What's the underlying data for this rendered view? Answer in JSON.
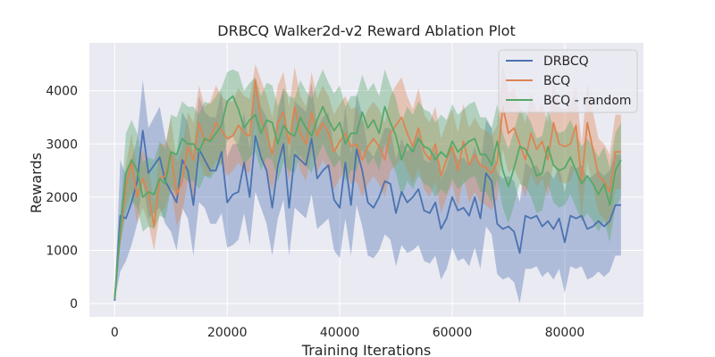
{
  "chart_data": {
    "type": "line",
    "title": "DRBCQ Walker2d-v2 Reward Ablation Plot",
    "xlabel": "Training Iterations",
    "ylabel": "Rewards",
    "xlim": [
      -4500,
      94000
    ],
    "ylim": [
      -250,
      4900
    ],
    "x_ticks": [
      0,
      20000,
      40000,
      60000,
      80000
    ],
    "x_tick_labels": [
      "0",
      "20000",
      "40000",
      "60000",
      "80000"
    ],
    "y_ticks": [
      0,
      1000,
      2000,
      3000,
      4000
    ],
    "y_tick_labels": [
      "0",
      "1000",
      "2000",
      "3000",
      "4000"
    ],
    "grid": true,
    "legend_position": "top-right",
    "x_start": 0,
    "x_step": 1000,
    "series": [
      {
        "name": "DRBCQ",
        "color": "#4c72b0",
        "values": [
          50,
          1650,
          1600,
          1900,
          2300,
          3250,
          2450,
          2600,
          2750,
          2300,
          2100,
          1900,
          2700,
          2500,
          1850,
          2900,
          2700,
          2500,
          2500,
          2850,
          1900,
          2050,
          2100,
          2650,
          2000,
          3150,
          2750,
          2500,
          1800,
          2600,
          3000,
          1800,
          2800,
          2700,
          2600,
          3100,
          2350,
          2500,
          2600,
          1950,
          1800,
          2650,
          1850,
          2900,
          2500,
          1900,
          1800,
          2000,
          2300,
          2250,
          1700,
          2100,
          1900,
          2000,
          2150,
          1750,
          1700,
          1900,
          1400,
          1600,
          2000,
          1750,
          1800,
          1650,
          2000,
          1600,
          2450,
          2300,
          1500,
          1400,
          1450,
          1350,
          950,
          1650,
          1600,
          1650,
          1450,
          1550,
          1400,
          1600,
          1150,
          1650,
          1600,
          1650,
          1400,
          1450,
          1550,
          1450,
          1550,
          1850,
          1850
        ],
        "lower": [
          50,
          600,
          800,
          1100,
          1500,
          2300,
          1600,
          1700,
          1800,
          1500,
          1350,
          1000,
          1800,
          1600,
          900,
          1900,
          1800,
          1500,
          1500,
          1700,
          1050,
          1100,
          1200,
          1700,
          1100,
          2100,
          1800,
          1500,
          900,
          1600,
          1950,
          900,
          1800,
          1700,
          1600,
          2050,
          1400,
          1500,
          1600,
          1000,
          850,
          1600,
          900,
          1850,
          1450,
          900,
          850,
          1000,
          1300,
          1200,
          700,
          1100,
          950,
          1000,
          1100,
          800,
          750,
          900,
          450,
          650,
          1050,
          800,
          850,
          700,
          1050,
          650,
          1450,
          1300,
          550,
          450,
          500,
          400,
          0,
          650,
          650,
          700,
          500,
          600,
          450,
          650,
          200,
          700,
          650,
          700,
          450,
          500,
          600,
          500,
          600,
          900,
          900
        ],
        "upper": [
          50,
          2700,
          2400,
          2700,
          3100,
          4200,
          3300,
          3500,
          3700,
          3100,
          2850,
          2800,
          3600,
          3400,
          2800,
          3900,
          3600,
          3500,
          3500,
          4000,
          2750,
          3000,
          3000,
          3600,
          2900,
          4200,
          3700,
          3500,
          2700,
          3600,
          4050,
          2700,
          3800,
          3700,
          3600,
          4150,
          3300,
          3500,
          3600,
          2900,
          2750,
          3700,
          2800,
          3950,
          3550,
          2900,
          2750,
          3000,
          3300,
          3300,
          2700,
          3100,
          2850,
          3000,
          3200,
          2700,
          2650,
          2900,
          2350,
          2550,
          2950,
          2700,
          2750,
          2600,
          2950,
          2550,
          3450,
          3300,
          2450,
          2350,
          2400,
          2300,
          1900,
          2650,
          2550,
          2600,
          2400,
          2500,
          2350,
          2550,
          2100,
          2600,
          2550,
          2600,
          2350,
          2400,
          2500,
          2400,
          2500,
          2800,
          2800
        ]
      },
      {
        "name": "BCQ",
        "color": "#dd8452",
        "values": [
          100,
          1300,
          2200,
          2650,
          2000,
          2350,
          2050,
          1450,
          2350,
          2400,
          2850,
          2050,
          2300,
          2950,
          2700,
          3400,
          3050,
          3100,
          3400,
          3250,
          3100,
          3150,
          3350,
          3200,
          3150,
          4200,
          3450,
          3200,
          2800,
          3400,
          3600,
          3000,
          3700,
          3200,
          3000,
          3600,
          3150,
          3400,
          3200,
          2850,
          3050,
          3200,
          2950,
          3000,
          2700,
          2950,
          3100,
          2950,
          2700,
          3200,
          3350,
          3500,
          3200,
          2950,
          3300,
          2850,
          2700,
          3000,
          2400,
          2700,
          2950,
          2500,
          3050,
          2600,
          2800,
          2600,
          2550,
          2450,
          2650,
          3700,
          3200,
          3300,
          3000,
          2700,
          3200,
          2900,
          3050,
          2700,
          3400,
          3000,
          2950,
          3000,
          3350,
          2300,
          3400,
          2900,
          2400,
          2300,
          2100,
          2850,
          2850
        ],
        "lower": [
          100,
          1100,
          1800,
          2100,
          1500,
          1800,
          1500,
          1000,
          1700,
          1800,
          2200,
          1450,
          1700,
          2300,
          2000,
          2700,
          2400,
          2400,
          2700,
          2600,
          2400,
          2500,
          2650,
          2500,
          2450,
          3400,
          2700,
          2500,
          2100,
          2700,
          2850,
          2300,
          2950,
          2500,
          2300,
          2850,
          2450,
          2700,
          2500,
          2150,
          2350,
          2500,
          2250,
          2300,
          2000,
          2250,
          2400,
          2250,
          2000,
          2500,
          2600,
          2750,
          2500,
          2250,
          2550,
          2150,
          2000,
          2300,
          1700,
          2000,
          2250,
          1800,
          2350,
          1900,
          2100,
          1900,
          1850,
          1750,
          1950,
          2900,
          2450,
          2550,
          2300,
          2000,
          2450,
          2200,
          2350,
          2000,
          2650,
          2300,
          2250,
          2300,
          2600,
          1600,
          2650,
          2200,
          1700,
          1600,
          1400,
          2150,
          2150
        ],
        "upper": [
          100,
          1500,
          2600,
          3200,
          2500,
          2900,
          2600,
          1900,
          3000,
          3000,
          3500,
          2650,
          2900,
          3600,
          3400,
          4100,
          3700,
          3800,
          4100,
          3900,
          3800,
          3800,
          4050,
          3900,
          3850,
          4500,
          4200,
          3900,
          3500,
          4100,
          4350,
          3700,
          4450,
          3900,
          3700,
          4350,
          3850,
          4100,
          3900,
          3550,
          3750,
          3900,
          3650,
          3700,
          3400,
          3650,
          3800,
          3650,
          3400,
          3900,
          4100,
          4250,
          3900,
          3650,
          4050,
          3550,
          3400,
          3700,
          3100,
          3400,
          3650,
          3200,
          3750,
          3300,
          3500,
          3300,
          3250,
          3150,
          3350,
          4500,
          3950,
          4050,
          3700,
          3400,
          3950,
          3600,
          3750,
          3400,
          4150,
          3700,
          3650,
          3700,
          4100,
          3000,
          4150,
          3600,
          3100,
          3000,
          2800,
          3550,
          3550
        ]
      },
      {
        "name": "BCQ - random",
        "color": "#55a868",
        "values": [
          80,
          1400,
          2450,
          2700,
          2500,
          2000,
          2100,
          2050,
          2350,
          2250,
          2850,
          2800,
          3100,
          3000,
          3000,
          2850,
          3100,
          3050,
          3200,
          3350,
          3800,
          3900,
          3650,
          3300,
          3450,
          3550,
          3200,
          3450,
          3400,
          3000,
          3350,
          3200,
          3150,
          3500,
          3300,
          3150,
          3450,
          3700,
          3450,
          3250,
          3400,
          3000,
          3200,
          3200,
          3600,
          3300,
          3450,
          3200,
          3700,
          3400,
          3150,
          2700,
          3000,
          2850,
          3100,
          2950,
          2900,
          2700,
          2850,
          2750,
          3050,
          2850,
          2950,
          3050,
          3100,
          2800,
          2800,
          2600,
          3050,
          2500,
          2200,
          2550,
          2950,
          2900,
          2700,
          2400,
          2450,
          2950,
          2600,
          2500,
          2550,
          2750,
          2500,
          2250,
          2400,
          2250,
          2050,
          2250,
          1850,
          2500,
          2700
        ],
        "lower": [
          80,
          1100,
          1700,
          1950,
          1800,
          1350,
          1450,
          1400,
          1650,
          1600,
          2150,
          2100,
          2400,
          2300,
          2300,
          2150,
          2400,
          2350,
          2500,
          2650,
          3050,
          3150,
          2900,
          2600,
          2750,
          2850,
          2500,
          2750,
          2700,
          2300,
          2650,
          2500,
          2450,
          2800,
          2600,
          2450,
          2750,
          3000,
          2750,
          2550,
          2700,
          2300,
          2500,
          2500,
          2900,
          2600,
          2750,
          2500,
          3000,
          2700,
          2450,
          2000,
          2300,
          2150,
          2400,
          2250,
          2200,
          2000,
          2150,
          2050,
          2350,
          2150,
          2250,
          2350,
          2400,
          2100,
          2100,
          1900,
          2350,
          1800,
          1500,
          1850,
          2250,
          2200,
          2000,
          1700,
          1750,
          2250,
          1900,
          1800,
          1850,
          2050,
          1800,
          1550,
          1700,
          1550,
          1350,
          1550,
          1150,
          1800,
          2000
        ],
        "upper": [
          80,
          1700,
          3200,
          3450,
          3200,
          2650,
          2750,
          2700,
          3050,
          2900,
          3550,
          3500,
          3800,
          3700,
          3700,
          3550,
          3800,
          3750,
          3900,
          4050,
          4350,
          4400,
          4350,
          4000,
          4150,
          4250,
          3900,
          4150,
          4100,
          3700,
          4050,
          3900,
          3850,
          4200,
          4000,
          3850,
          4150,
          4400,
          4150,
          3950,
          4100,
          3700,
          3900,
          3900,
          4300,
          4000,
          4150,
          3900,
          4400,
          4100,
          3850,
          3400,
          3700,
          3550,
          3800,
          3650,
          3600,
          3400,
          3550,
          3450,
          3750,
          3550,
          3650,
          3750,
          3800,
          3500,
          3500,
          3300,
          3750,
          3200,
          2900,
          3250,
          3650,
          3600,
          3400,
          3100,
          3150,
          3650,
          3300,
          3200,
          3250,
          3450,
          3200,
          2950,
          3100,
          2950,
          2750,
          2950,
          2550,
          3200,
          3400
        ]
      }
    ]
  }
}
